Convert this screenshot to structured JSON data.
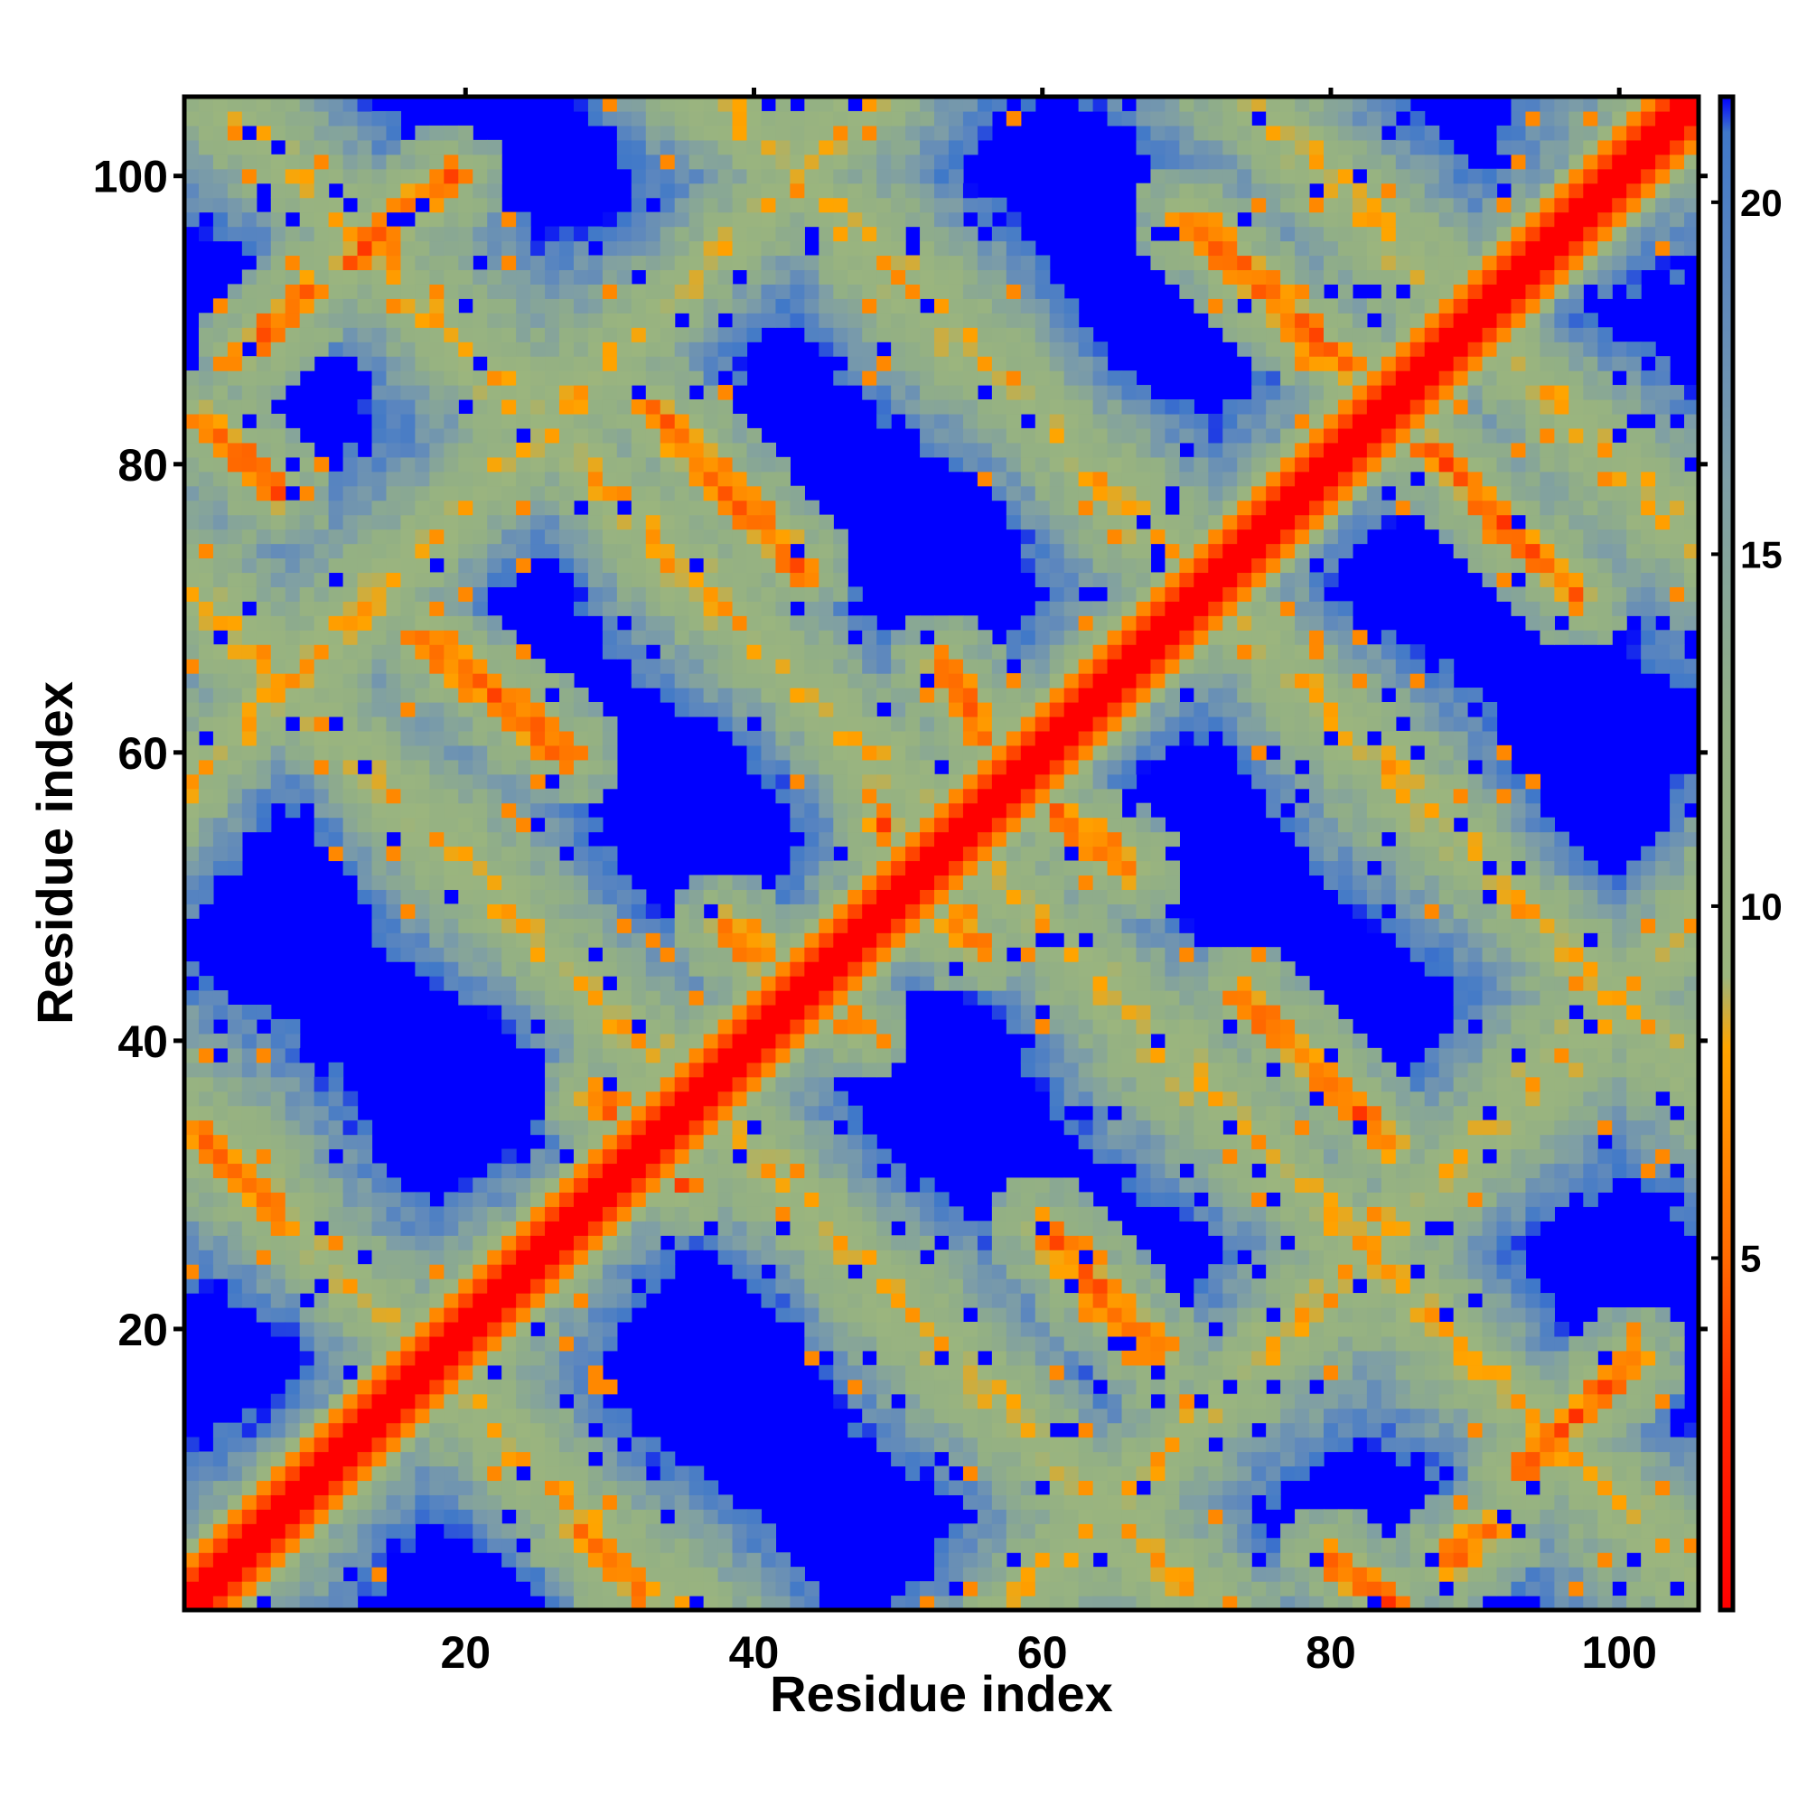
{
  "chart_data": {
    "type": "heatmap",
    "title": "",
    "xlabel": "Residue index",
    "ylabel": "Residue index",
    "n_residues": 106,
    "xlim": [
      0.5,
      105.5
    ],
    "ylim": [
      0.5,
      105.5
    ],
    "x_ticks": [
      20,
      40,
      60,
      80,
      100
    ],
    "y_ticks": [
      20,
      40,
      60,
      80,
      100
    ],
    "colorbar": {
      "position": "right",
      "range": [
        0,
        21.5
      ],
      "ticks": [
        5,
        10,
        15,
        20
      ],
      "stops": [
        {
          "value": 0,
          "color": "#ff0000"
        },
        {
          "value": 3,
          "color": "#ff2a00"
        },
        {
          "value": 5,
          "color": "#ff6a00"
        },
        {
          "value": 8,
          "color": "#ffa500"
        },
        {
          "value": 9,
          "color": "#9bb57e"
        },
        {
          "value": 12.5,
          "color": "#93b084"
        },
        {
          "value": 16,
          "color": "#7e9ea6"
        },
        {
          "value": 19,
          "color": "#5b86bf"
        },
        {
          "value": 21,
          "color": "#3f78c9"
        },
        {
          "value": 21.5,
          "color": "#0000ff"
        }
      ],
      "cutoff_color": "#0000ff"
    },
    "colors": {
      "background": "#0000ff",
      "contact": "#ff0000",
      "near_contact": "#ff8c00",
      "intermediate": "#9fb77c",
      "far": "#6a92b6"
    },
    "structure": {
      "diagonal_bands": [
        {
          "axis": "anti",
          "offset": 35
        },
        {
          "axis": "anti",
          "offset": 72
        },
        {
          "axis": "anti",
          "offset": 108
        },
        {
          "axis": "anti",
          "offset": 143
        },
        {
          "axis": "anti",
          "offset": 180
        },
        {
          "axis": "main",
          "offset": 0
        },
        {
          "axis": "main",
          "offset": 57
        },
        {
          "axis": "main",
          "offset": -57
        }
      ],
      "hot_segments": [
        {
          "x0": 2,
          "y0": 83,
          "x1": 7,
          "y1": 78
        },
        {
          "x0": 5,
          "y0": 88,
          "x1": 9,
          "y1": 92
        },
        {
          "x0": 12,
          "y0": 94,
          "x1": 19,
          "y1": 100
        },
        {
          "x0": 17,
          "y0": 68,
          "x1": 27,
          "y1": 60
        },
        {
          "x0": 33,
          "y0": 84,
          "x1": 43,
          "y1": 73
        },
        {
          "x0": 53,
          "y0": 66,
          "x1": 58,
          "y1": 58
        },
        {
          "x0": 58,
          "y0": 58,
          "x1": 66,
          "y1": 52
        },
        {
          "x0": 49,
          "y0": 55,
          "x1": 55,
          "y1": 47
        },
        {
          "x0": 38,
          "y0": 48,
          "x1": 47,
          "y1": 41
        },
        {
          "x0": 74,
          "y0": 43,
          "x1": 84,
          "y1": 33
        },
        {
          "x0": 60,
          "y0": 27,
          "x1": 68,
          "y1": 18
        },
        {
          "x0": 93,
          "y0": 10,
          "x1": 101,
          "y1": 18
        },
        {
          "x0": 70,
          "y0": 97,
          "x1": 83,
          "y1": 85
        },
        {
          "x0": 84,
          "y0": 84,
          "x1": 97,
          "y1": 71
        },
        {
          "x0": 2,
          "y0": 33,
          "x1": 7,
          "y1": 28
        },
        {
          "x0": 28,
          "y0": 6,
          "x1": 32,
          "y1": 2
        },
        {
          "x0": 80,
          "y0": 4,
          "x1": 84,
          "y1": 1
        },
        {
          "x0": 88,
          "y0": 4,
          "x1": 91,
          "y1": 6
        },
        {
          "x0": 29,
          "y0": 36,
          "x1": 35,
          "y1": 30
        }
      ]
    }
  }
}
